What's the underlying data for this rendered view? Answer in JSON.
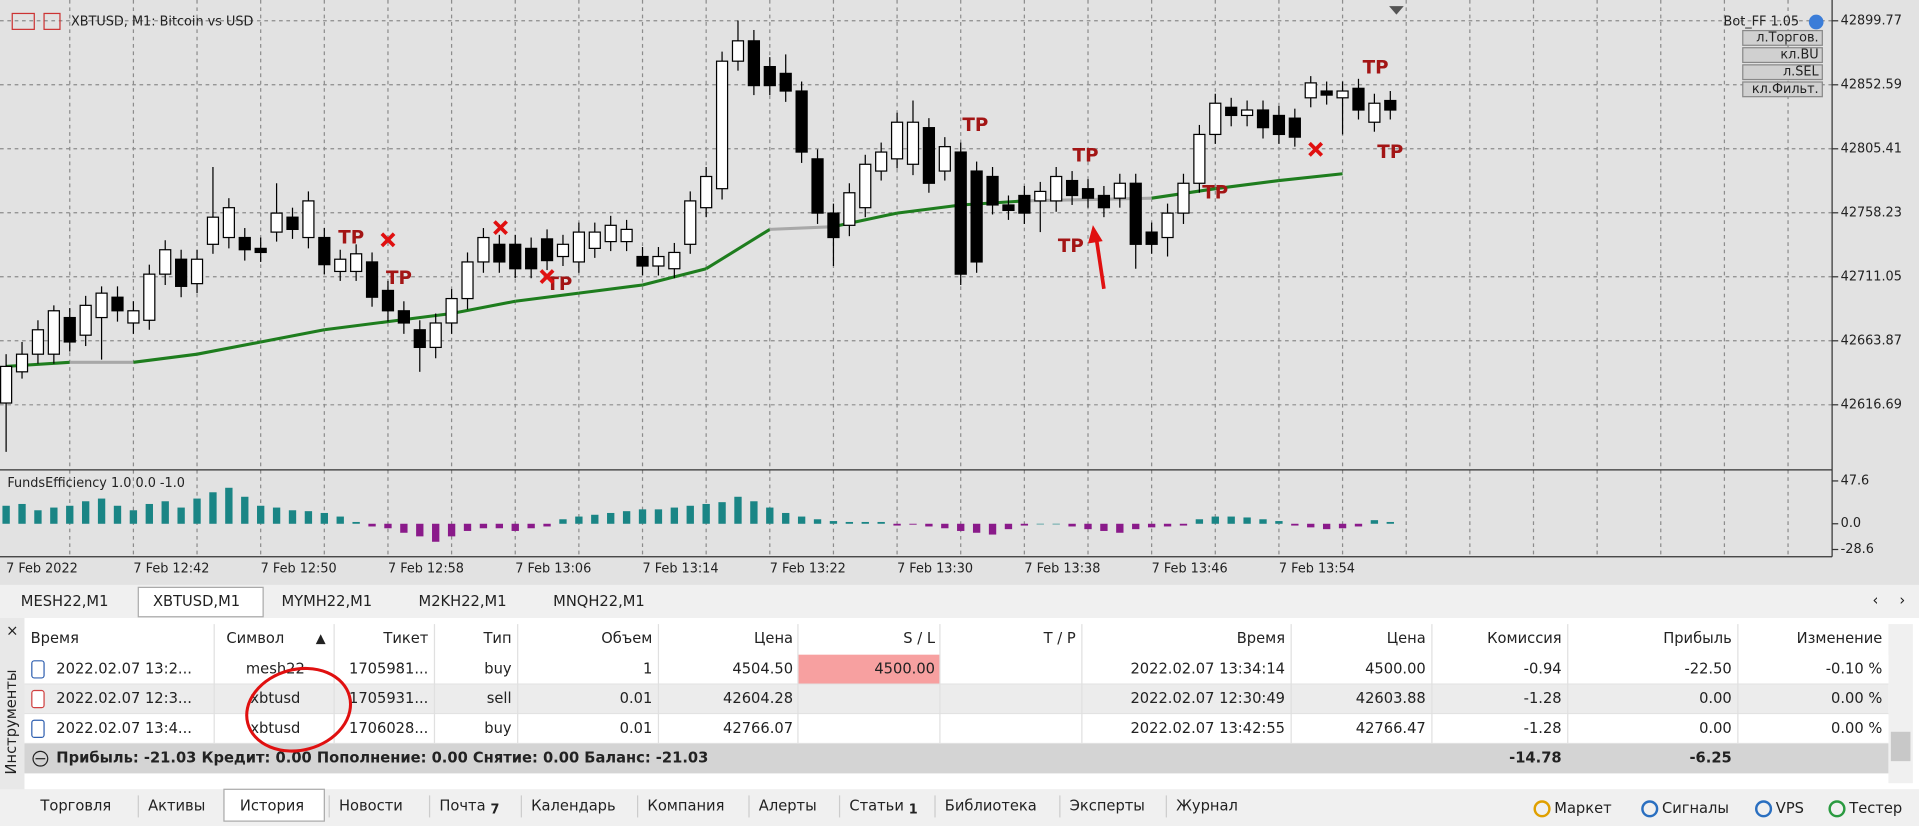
{
  "chart": {
    "title": "XBTUSD, M1:  Bitcoin vs USD",
    "expert": "Bot_FF 1.05",
    "buttons": [
      "л.Торгов.",
      "кл.BU",
      "л.SEL",
      "кл.Фильт."
    ],
    "ylim": [
      42569.6,
      42915.1
    ],
    "yticks": [
      42899.77,
      42852.59,
      42805.41,
      42758.23,
      42711.05,
      42663.87,
      42616.69
    ],
    "up_color": "#ffffff",
    "down_color": "#000000",
    "candles": [
      [
        42618,
        42654,
        42582,
        42645
      ],
      [
        42641,
        42663,
        42636,
        42654
      ],
      [
        42654,
        42679,
        42647,
        42672
      ],
      [
        42654,
        42690,
        42647,
        42686
      ],
      [
        42681,
        42688,
        42656,
        42663
      ],
      [
        42668,
        42697,
        42660,
        42690
      ],
      [
        42681,
        42704,
        42650,
        42699
      ],
      [
        42696,
        42704,
        42678,
        42686
      ],
      [
        42677,
        42693,
        42669,
        42686
      ],
      [
        42679,
        42720,
        42672,
        42713
      ],
      [
        42713,
        42738,
        42705,
        42731
      ],
      [
        42724,
        42731,
        42696,
        42704
      ],
      [
        42706,
        42731,
        42699,
        42724
      ],
      [
        42735,
        42792,
        42728,
        42755
      ],
      [
        42740,
        42769,
        42732,
        42762
      ],
      [
        42740,
        42747,
        42723,
        42731
      ],
      [
        42732,
        42740,
        42722,
        42729
      ],
      [
        42744,
        42780,
        42737,
        42758
      ],
      [
        42755,
        42762,
        42739,
        42746
      ],
      [
        42740,
        42774,
        42732,
        42767
      ],
      [
        42740,
        42747,
        42713,
        42720
      ],
      [
        42715,
        42731,
        42708,
        42724
      ],
      [
        42715,
        42735,
        42708,
        42728
      ],
      [
        42722,
        42729,
        42689,
        42696
      ],
      [
        42701,
        42708,
        42678,
        42686
      ],
      [
        42686,
        42693,
        42669,
        42677
      ],
      [
        42672,
        42679,
        42641,
        42659
      ],
      [
        42659,
        42684,
        42651,
        42677
      ],
      [
        42677,
        42702,
        42669,
        42695
      ],
      [
        42695,
        42729,
        42687,
        42722
      ],
      [
        42722,
        42747,
        42714,
        42740
      ],
      [
        42735,
        42742,
        42714,
        42722
      ],
      [
        42735,
        42742,
        42710,
        42717
      ],
      [
        42732,
        42740,
        42710,
        42717
      ],
      [
        42739,
        42746,
        42716,
        42723
      ],
      [
        42726,
        42742,
        42719,
        42735
      ],
      [
        42722,
        42751,
        42714,
        42744
      ],
      [
        42732,
        42751,
        42725,
        42744
      ],
      [
        42737,
        42756,
        42730,
        42749
      ],
      [
        42737,
        42753,
        42730,
        42746
      ],
      [
        42726,
        42733,
        42712,
        42719
      ],
      [
        42719,
        42733,
        42712,
        42726
      ],
      [
        42717,
        42736,
        42710,
        42729
      ],
      [
        42735,
        42774,
        42728,
        42767
      ],
      [
        42762,
        42792,
        42755,
        42785
      ],
      [
        42776,
        42877,
        42768,
        42870
      ],
      [
        42870,
        42900,
        42863,
        42885
      ],
      [
        42885,
        42893,
        42845,
        42852
      ],
      [
        42866,
        42873,
        42845,
        42852
      ],
      [
        42861,
        42875,
        42840,
        42848
      ],
      [
        42848,
        42855,
        42795,
        42803
      ],
      [
        42798,
        42805,
        42750,
        42758
      ],
      [
        42758,
        42765,
        42719,
        42740
      ],
      [
        42749,
        42780,
        42741,
        42773
      ],
      [
        42762,
        42801,
        42755,
        42794
      ],
      [
        42789,
        42810,
        42782,
        42803
      ],
      [
        42798,
        42832,
        42791,
        42825
      ],
      [
        42794,
        42841,
        42786,
        42825
      ],
      [
        42821,
        42828,
        42773,
        42780
      ],
      [
        42789,
        42814,
        42782,
        42807
      ],
      [
        42803,
        42810,
        42705,
        42713
      ],
      [
        42789,
        42796,
        42714,
        42722
      ],
      [
        42785,
        42792,
        42757,
        42764
      ],
      [
        42764,
        42771,
        42753,
        42760
      ],
      [
        42771,
        42778,
        42750,
        42758
      ],
      [
        42767,
        42781,
        42744,
        42774
      ],
      [
        42767,
        42792,
        42759,
        42785
      ],
      [
        42782,
        42789,
        42764,
        42771
      ],
      [
        42776,
        42783,
        42762,
        42769
      ],
      [
        42771,
        42778,
        42755,
        42762
      ],
      [
        42769,
        42787,
        42762,
        42780
      ],
      [
        42780,
        42787,
        42717,
        42735
      ],
      [
        42744,
        42751,
        42728,
        42735
      ],
      [
        42740,
        42765,
        42726,
        42758
      ],
      [
        42758,
        42787,
        42750,
        42780
      ],
      [
        42780,
        42823,
        42773,
        42816
      ],
      [
        42816,
        42846,
        42809,
        42839
      ],
      [
        42836,
        42843,
        42822,
        42830
      ],
      [
        42830,
        42841,
        42822,
        42834
      ],
      [
        42834,
        42841,
        42813,
        42821
      ],
      [
        42830,
        42837,
        42809,
        42816
      ],
      [
        42828,
        42835,
        42807,
        42814
      ],
      [
        42843,
        42859,
        42836,
        42854
      ],
      [
        42848,
        42855,
        42838,
        42845
      ],
      [
        42843,
        42855,
        42816,
        42848
      ],
      [
        42850,
        42857,
        42827,
        42834
      ],
      [
        42825,
        42846,
        42818,
        42839
      ],
      [
        42841,
        42848,
        42827,
        42834
      ]
    ],
    "ma": [
      42645,
      42648,
      42648,
      42654,
      42663,
      42672,
      42678,
      42684,
      42693,
      42699,
      42705,
      42717,
      42746,
      42748,
      42758,
      42764,
      42767,
      42768,
      42769,
      42776,
      42782,
      42787
    ],
    "ma_colors": {
      "rising": "#1e7d1e",
      "flat": "#a8a8a8"
    },
    "tp_labels": [
      "TP",
      "TP",
      "TP",
      "TP",
      "TP",
      "TP",
      "TP",
      "TP",
      "TP"
    ],
    "times": [
      "7 Feb 2022",
      "7 Feb 12:42",
      "7 Feb 12:50",
      "7 Feb 12:58",
      "7 Feb 13:06",
      "7 Feb 13:14",
      "7 Feb 13:22",
      "7 Feb 13:30",
      "7 Feb 13:38",
      "7 Feb 13:46",
      "7 Feb 13:54"
    ],
    "indicator": {
      "label": "FundsEfficiency 1.0 0.0 -1.0",
      "ylim": [
        -36.7,
        58.5
      ],
      "yticks": [
        47.6,
        {
          "value": 0,
          "label": "0.0"
        },
        -28.6
      ],
      "pos_color": "#1a8585",
      "neg_color": "#8a1a8a",
      "values": [
        20,
        22,
        15,
        18,
        20,
        25,
        28,
        20,
        15,
        22,
        25,
        18,
        28,
        35,
        40,
        30,
        20,
        18,
        15,
        14,
        12,
        8,
        2,
        -3,
        -5,
        -10,
        -14,
        -20,
        -14,
        -8,
        -5,
        -5,
        -8,
        -5,
        -3,
        5,
        8,
        10,
        12,
        14,
        16,
        16,
        18,
        20,
        22,
        24,
        30,
        25,
        18,
        12,
        8,
        5,
        3,
        2,
        2,
        2,
        -2,
        -1,
        -3,
        -5,
        -8,
        -10,
        -12,
        -6,
        -2,
        0,
        0,
        -3,
        -6,
        -8,
        -10,
        -6,
        -4,
        -3,
        -2,
        5,
        8,
        8,
        7,
        5,
        3,
        -2,
        -4,
        -6,
        -5,
        -3,
        4,
        2
      ]
    }
  },
  "chart_tabs": [
    "MESH22,M1",
    "XBTUSD,M1",
    "MYMH22,M1",
    "M2KH22,M1",
    "MNQH22,M1"
  ],
  "panel_title": "Инструменты",
  "table": {
    "headers": [
      "Время",
      "Символ",
      "Тикет",
      "Тип",
      "Объем",
      "Цена",
      "S / L",
      "T / P",
      "Время",
      "Цена",
      "Комиссия",
      "Прибыль",
      "Изменение"
    ],
    "rows": [
      [
        "2022.02.07 13:2...",
        "mesh22",
        "1705981...",
        "buy",
        "1",
        "4504.50",
        "4500.00",
        null,
        "2022.02.07 13:34:14",
        "4500.00",
        "-0.94",
        "-22.50",
        "-0.10 %"
      ],
      [
        "2022.02.07 12:3...",
        "xbtusd",
        "1705931...",
        "sell",
        "0.01",
        "42604.28",
        null,
        null,
        "2022.02.07 12:30:49",
        "42603.88",
        "-1.28",
        "0.00",
        "0.00 %"
      ],
      [
        "2022.02.07 13:4...",
        "xbtusd",
        "1706028...",
        "buy",
        "0.01",
        "42766.07",
        null,
        null,
        "2022.02.07 13:42:55",
        "42766.47",
        "-1.28",
        "0.00",
        "0.00 %"
      ]
    ],
    "summary": {
      "text": "Прибыль: -21.03  Кредит: 0.00  Пополнение: 0.00  Снятие: 0.00  Баланс: -21.03",
      "commission": "-14.78",
      "profit": "-6.25"
    }
  },
  "bottom_tabs": [
    {
      "label": "Торговля"
    },
    {
      "label": "Активы"
    },
    {
      "label": "История"
    },
    {
      "label": "Новости"
    },
    {
      "label": "Почта",
      "badge": "7"
    },
    {
      "label": "Календарь"
    },
    {
      "label": "Компания"
    },
    {
      "label": "Алерты"
    },
    {
      "label": "Статьи",
      "badge": "1"
    },
    {
      "label": "Библиотека"
    },
    {
      "label": "Эксперты"
    },
    {
      "label": "Журнал"
    }
  ],
  "services": [
    "Маркет",
    "Сигналы",
    "VPS",
    "Тестер"
  ]
}
